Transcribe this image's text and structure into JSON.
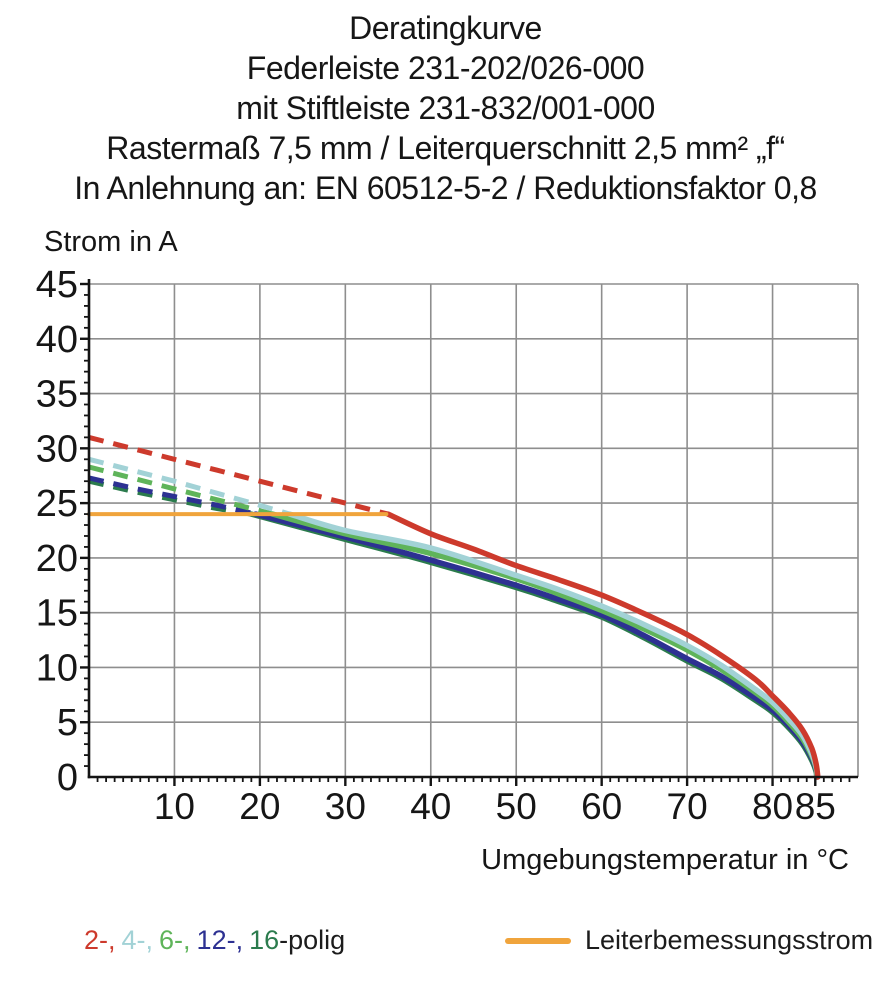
{
  "title_block": {
    "lines": [
      "Deratingkurve",
      "Federleiste 231-202/026-000",
      "mit Stiftleiste 231-832/001-000",
      "Rastermaß 7,5 mm / Leiterquerschnitt 2,5 mm² „f“",
      "In Anlehnung an: EN 60512-5-2 / Reduktionsfaktor 0,8"
    ]
  },
  "axes": {
    "y_label": "Strom in A",
    "x_label": "Umgebungstemperatur in °C"
  },
  "legend": {
    "pole_items": [
      {
        "text": "2-,",
        "color": "#cd3a2c"
      },
      {
        "text": "4-,",
        "color": "#a2d2d6"
      },
      {
        "text": "6-,",
        "color": "#5fb45a"
      },
      {
        "text": "12-,",
        "color": "#2d3192"
      },
      {
        "text": "16",
        "color": "#2b7b4d"
      }
    ],
    "pole_suffix": "-polig",
    "rated_label": "Leiterbemessungsstrom",
    "rated_color": "#f0a43c"
  },
  "chart_data": {
    "type": "line",
    "title": "Deratingkurve",
    "xlabel": "Umgebungstemperatur in °C",
    "ylabel": "Strom in A",
    "xlim": [
      0,
      90
    ],
    "ylim": [
      0,
      45
    ],
    "grid": true,
    "x_major_ticks": [
      10,
      20,
      30,
      40,
      50,
      60,
      70,
      80,
      85
    ],
    "x_gridlines": [
      10,
      20,
      30,
      40,
      50,
      60,
      70,
      80,
      90
    ],
    "y_major_ticks": [
      0,
      5,
      10,
      15,
      20,
      25,
      30,
      35,
      40,
      45
    ],
    "grid_color": "#8e8e8e",
    "axis_color": "#141414",
    "rated_current": {
      "name": "Leiterbemessungsstrom",
      "value_A": 24,
      "x_range": [
        0,
        34.8
      ],
      "color": "#f0a43c"
    },
    "series": [
      {
        "name": "16-polig",
        "color": "#2b7b4d",
        "dashed_points": [
          [
            0,
            27.0
          ],
          [
            5,
            26.1
          ],
          [
            10,
            25.3
          ],
          [
            15,
            24.5
          ],
          [
            19,
            24
          ]
        ],
        "solid_points": [
          [
            19,
            24
          ],
          [
            30,
            21.7
          ],
          [
            40,
            19.6
          ],
          [
            50,
            17.3
          ],
          [
            55,
            16.0
          ],
          [
            60,
            14.6
          ],
          [
            65,
            12.7
          ],
          [
            70,
            10.6
          ],
          [
            74,
            9.0
          ],
          [
            78,
            7.0
          ],
          [
            80,
            5.9
          ],
          [
            82,
            4.4
          ],
          [
            83.5,
            3.0
          ],
          [
            84.6,
            1.5
          ],
          [
            85.1,
            0.5
          ],
          [
            85.15,
            0
          ]
        ]
      },
      {
        "name": "12-polig",
        "color": "#2d3192",
        "dashed_points": [
          [
            0,
            27.3
          ],
          [
            5,
            26.4
          ],
          [
            10,
            25.6
          ],
          [
            15,
            24.8
          ],
          [
            19.5,
            24
          ]
        ],
        "solid_points": [
          [
            19.5,
            24
          ],
          [
            30,
            21.9
          ],
          [
            40,
            19.8
          ],
          [
            50,
            17.5
          ],
          [
            55,
            16.2
          ],
          [
            60,
            14.8
          ],
          [
            65,
            12.9
          ],
          [
            70,
            10.8
          ],
          [
            74,
            9.2
          ],
          [
            78,
            7.2
          ],
          [
            80,
            6.1
          ],
          [
            82,
            4.6
          ],
          [
            83.5,
            3.2
          ],
          [
            84.6,
            1.7
          ],
          [
            85.1,
            0.7
          ],
          [
            85.2,
            0
          ]
        ]
      },
      {
        "name": "6-polig",
        "color": "#5fb45a",
        "dashed_points": [
          [
            0,
            28.3
          ],
          [
            5,
            27.3
          ],
          [
            10,
            26.3
          ],
          [
            15,
            25.3
          ],
          [
            20,
            24.3
          ],
          [
            21.5,
            24
          ]
        ],
        "solid_points": [
          [
            21.5,
            24
          ],
          [
            30,
            22.2
          ],
          [
            40,
            20.4
          ],
          [
            50,
            18.1
          ],
          [
            55,
            16.7
          ],
          [
            60,
            15.2
          ],
          [
            65,
            13.5
          ],
          [
            70,
            11.6
          ],
          [
            74,
            9.8
          ],
          [
            78,
            7.7
          ],
          [
            80,
            6.5
          ],
          [
            82,
            4.9
          ],
          [
            83.5,
            3.5
          ],
          [
            84.6,
            1.9
          ],
          [
            85.1,
            0.8
          ],
          [
            85.2,
            0
          ]
        ]
      },
      {
        "name": "4-polig",
        "color": "#a2d2d6",
        "dashed_points": [
          [
            0,
            29
          ],
          [
            5,
            28
          ],
          [
            10,
            27
          ],
          [
            15,
            25.9
          ],
          [
            20,
            24.8
          ],
          [
            23.5,
            24
          ]
        ],
        "solid_points": [
          [
            23.5,
            24
          ],
          [
            30,
            22.5
          ],
          [
            40,
            20.9
          ],
          [
            50,
            18.4
          ],
          [
            55,
            17.1
          ],
          [
            60,
            15.6
          ],
          [
            65,
            13.9
          ],
          [
            70,
            12.0
          ],
          [
            74,
            10.2
          ],
          [
            78,
            8.0
          ],
          [
            80,
            6.8
          ],
          [
            82,
            5.2
          ],
          [
            83.5,
            3.8
          ],
          [
            84.6,
            2.1
          ],
          [
            85.1,
            0.9
          ],
          [
            85.25,
            0
          ]
        ]
      },
      {
        "name": "2-polig",
        "color": "#cd3a2c",
        "dashed_points": [
          [
            0,
            31
          ],
          [
            5,
            30
          ],
          [
            10,
            29
          ],
          [
            15,
            28
          ],
          [
            20,
            27
          ],
          [
            25,
            26
          ],
          [
            30,
            25
          ],
          [
            35,
            24
          ]
        ],
        "solid_points": [
          [
            35,
            24
          ],
          [
            40,
            22.2
          ],
          [
            45,
            20.8
          ],
          [
            50,
            19.3
          ],
          [
            55,
            18.0
          ],
          [
            60,
            16.6
          ],
          [
            65,
            14.9
          ],
          [
            70,
            13.0
          ],
          [
            74,
            11.1
          ],
          [
            78,
            8.9
          ],
          [
            80,
            7.4
          ],
          [
            82,
            5.8
          ],
          [
            83.5,
            4.3
          ],
          [
            84.6,
            2.6
          ],
          [
            85.1,
            1.2
          ],
          [
            85.3,
            0
          ]
        ]
      }
    ]
  }
}
